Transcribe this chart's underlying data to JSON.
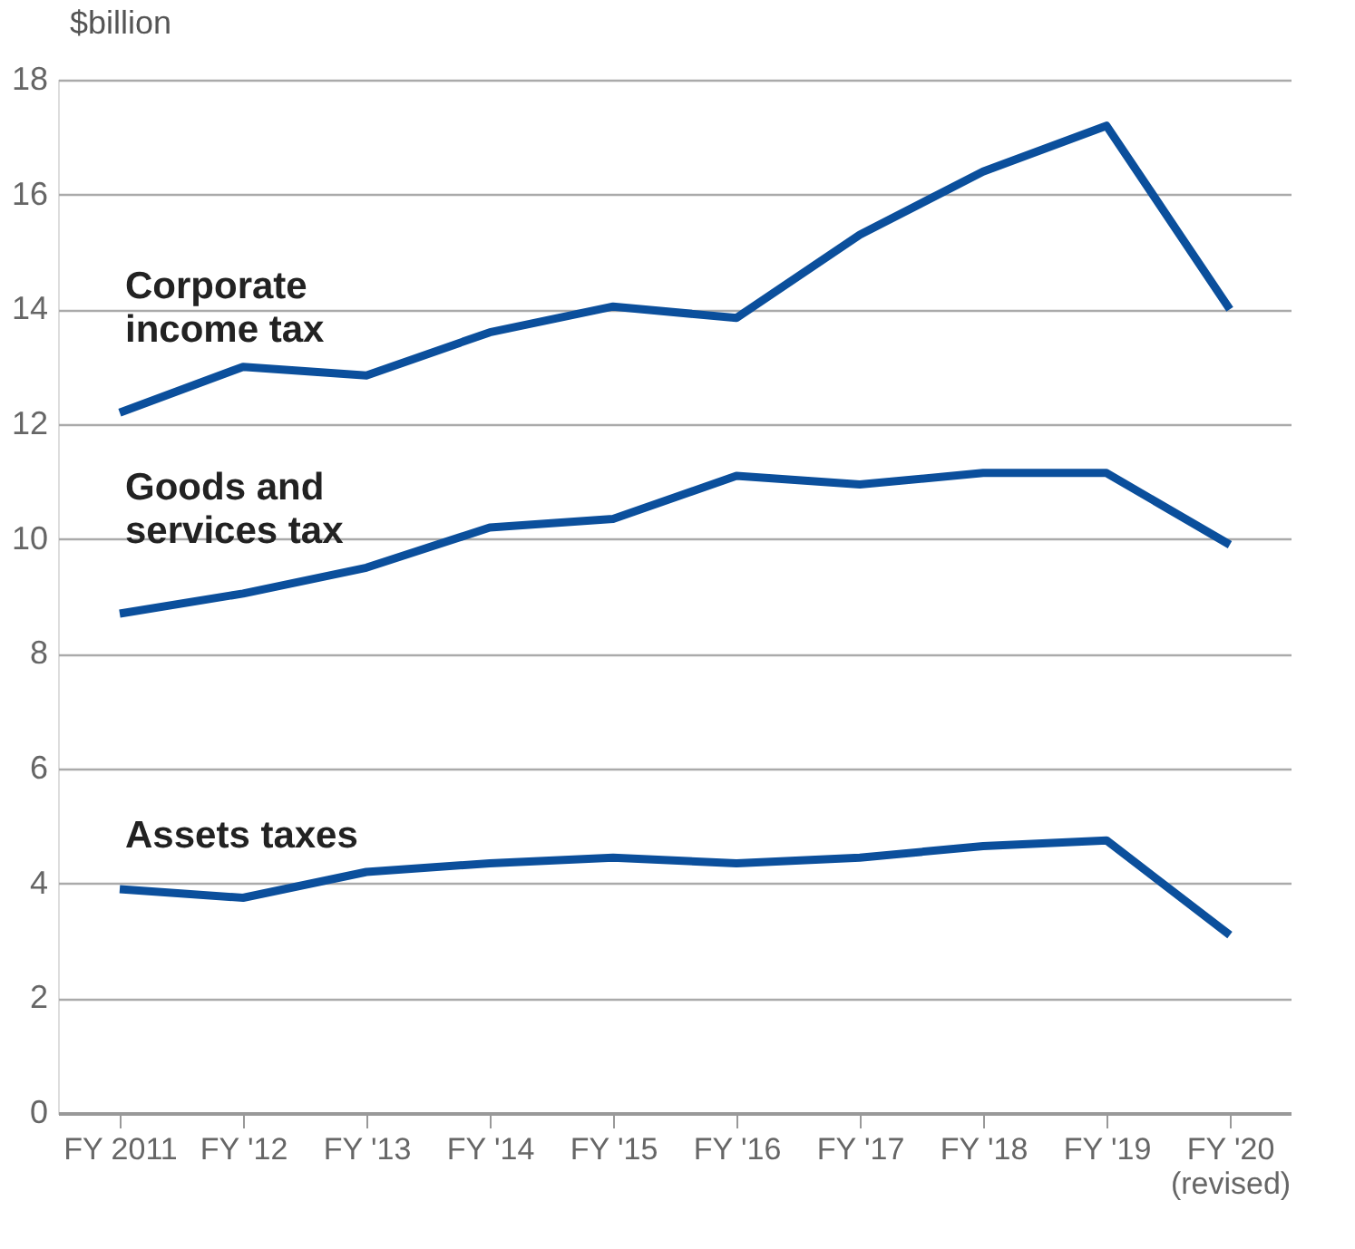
{
  "chart_data": {
    "type": "line",
    "ylabel": "$billion",
    "categories": [
      "FY 2011",
      "FY '12",
      "FY '13",
      "FY '14",
      "FY '15",
      "FY '16",
      "FY '17",
      "FY '18",
      "FY '19",
      "FY '20 (revised)"
    ],
    "series": [
      {
        "name": "Corporate income tax",
        "color": "#0b4f9c",
        "values": [
          12.2,
          13.0,
          12.85,
          13.6,
          14.05,
          13.85,
          15.3,
          16.4,
          17.2,
          14.0
        ]
      },
      {
        "name": "Goods and services tax",
        "color": "#0b4f9c",
        "values": [
          8.7,
          9.05,
          9.5,
          10.2,
          10.35,
          11.1,
          10.95,
          11.15,
          11.15,
          9.9
        ]
      },
      {
        "name": "Assets taxes",
        "color": "#0b4f9c",
        "values": [
          3.9,
          3.75,
          4.2,
          4.35,
          4.45,
          4.35,
          4.45,
          4.65,
          4.75,
          3.1
        ]
      }
    ],
    "ylim": [
      0,
      18
    ],
    "yticks": [
      0,
      2,
      4,
      6,
      8,
      10,
      12,
      14,
      16,
      18
    ],
    "grid": "y",
    "legend": false
  }
}
